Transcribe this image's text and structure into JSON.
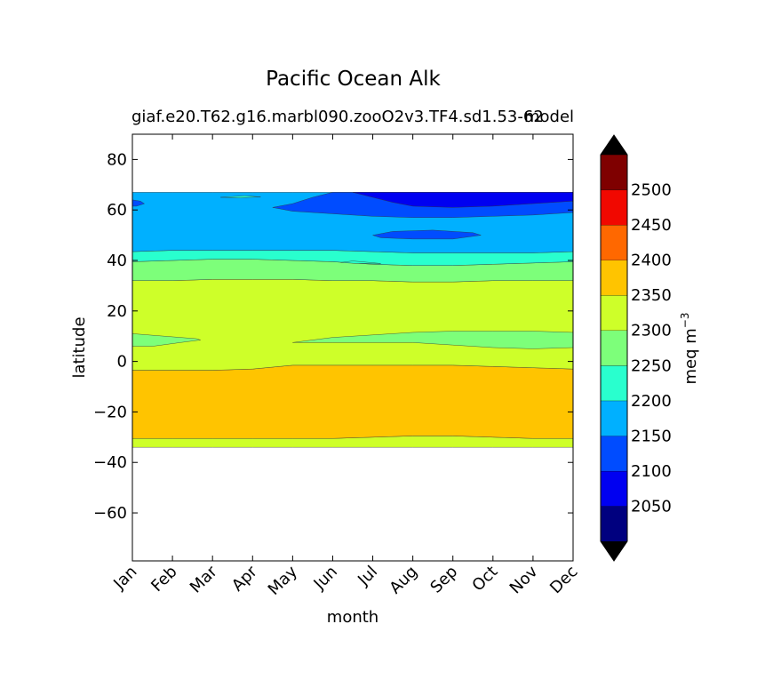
{
  "chart_data": {
    "type": "filled-contour",
    "title": "Pacific Ocean Alk",
    "subtitle_left": "giaf.e20.T62.g16.marbl090.zooO2v3.TF4.sd1.53-62",
    "subtitle_right": "model",
    "xlabel": "month",
    "ylabel": "latitude",
    "x_categories": [
      "Jan",
      "Feb",
      "Mar",
      "Apr",
      "May",
      "Jun",
      "Jul",
      "Aug",
      "Sep",
      "Oct",
      "Nov",
      "Dec"
    ],
    "y_ticks": [
      80,
      60,
      40,
      20,
      0,
      -20,
      -40,
      -60
    ],
    "ylim": [
      -79,
      90
    ],
    "data_lat_range": [
      -34,
      67
    ],
    "colorbar": {
      "label": "meq m",
      "label_exponent": "−3",
      "levels": [
        2000,
        2050,
        2100,
        2150,
        2200,
        2250,
        2300,
        2350,
        2400,
        2450,
        2500,
        2550
      ],
      "tick_labels": [
        "2050",
        "2100",
        "2150",
        "2200",
        "2250",
        "2300",
        "2350",
        "2400",
        "2450",
        "2500"
      ],
      "colors": [
        "#00007f",
        "#0000f1",
        "#004cff",
        "#00b0ff",
        "#29ffce",
        "#7dff7a",
        "#ceff29",
        "#ffc400",
        "#ff6800",
        "#f10800",
        "#7f0000"
      ],
      "extend": "both",
      "under_color": "#000000",
      "over_color": "#000000"
    },
    "latitude_bands_south_to_north": [
      {
        "name": "2300-2350",
        "color": "#ceff29",
        "lower": [
          -34,
          -34,
          -34,
          -34,
          -34,
          -34,
          -34,
          -34,
          -34,
          -34,
          -34,
          -34
        ],
        "upper": [
          -30.5,
          -30.5,
          -30.5,
          -30.5,
          -30.5,
          -30.5,
          -30,
          -29.5,
          -29.5,
          -30,
          -30.5,
          -30.5
        ]
      },
      {
        "name": "2350-2400",
        "color": "#ffc400",
        "lower": [
          -30.5,
          -30.5,
          -30.5,
          -30.5,
          -30.5,
          -30.5,
          -30,
          -29.5,
          -29.5,
          -30,
          -30.5,
          -30.5
        ],
        "upper": [
          -3.5,
          -3.5,
          -3.5,
          -3.0,
          -1.5,
          -1.5,
          -1.5,
          -1.5,
          -1.5,
          -2.0,
          -2.5,
          -3.0
        ]
      },
      {
        "name": "2300-2350",
        "color": "#ceff29",
        "lower": [
          -3.5,
          -3.5,
          -3.5,
          -3.0,
          -1.5,
          -1.5,
          -1.5,
          -1.5,
          -1.5,
          -2.0,
          -2.5,
          -3.0
        ],
        "upper": [
          32,
          32,
          32.5,
          32.5,
          32.5,
          32,
          32,
          31.5,
          31.5,
          32,
          32,
          32
        ]
      },
      {
        "name": "2250-2300",
        "color": "#7dff7a",
        "lower": [
          32,
          32,
          32.5,
          32.5,
          32.5,
          32,
          32,
          31.5,
          31.5,
          32,
          32,
          32
        ],
        "upper": [
          39.5,
          40,
          40.5,
          40.5,
          40,
          39.5,
          38.5,
          38,
          38,
          38.5,
          39,
          39.5
        ]
      },
      {
        "name": "2200-2250",
        "color": "#29ffce",
        "lower": [
          39.5,
          40,
          40.5,
          40.5,
          40,
          39.5,
          38.5,
          38,
          38,
          38.5,
          39,
          39.5
        ],
        "upper": [
          43.5,
          44,
          44,
          44,
          44,
          44,
          43.5,
          43,
          43,
          43,
          43,
          43.5
        ]
      },
      {
        "name": "2150-2200",
        "color": "#00b0ff",
        "lower": [
          43.5,
          44,
          44,
          44,
          44,
          44,
          43.5,
          43,
          43,
          43,
          43,
          43.5
        ],
        "upper": [
          67,
          67,
          67,
          67,
          67,
          67,
          67,
          67,
          67,
          67,
          67,
          67
        ]
      }
    ],
    "features": [
      {
        "name": "2250-2300 tongue west",
        "color": "#7dff7a",
        "points": [
          [
            0.0,
            11
          ],
          [
            0.8,
            10
          ],
          [
            1.6,
            9
          ],
          [
            1.7,
            8.5
          ],
          [
            1.2,
            7.5
          ],
          [
            0.5,
            6
          ],
          [
            0.0,
            6
          ]
        ]
      },
      {
        "name": "2250-2300 tongue east",
        "color": "#7dff7a",
        "points": [
          [
            4.0,
            7.5
          ],
          [
            5.0,
            9.5
          ],
          [
            6.0,
            10.5
          ],
          [
            7.0,
            11.5
          ],
          [
            8.0,
            12
          ],
          [
            9.0,
            12
          ],
          [
            10.0,
            12
          ],
          [
            11.0,
            11.5
          ],
          [
            11.0,
            5.5
          ],
          [
            10.0,
            5
          ],
          [
            9.0,
            5.5
          ],
          [
            8.0,
            6.5
          ],
          [
            7.0,
            7.5
          ],
          [
            6.0,
            7.5
          ],
          [
            5.0,
            7.5
          ]
        ]
      },
      {
        "name": "2100-2150 north region",
        "color": "#004cff",
        "points": [
          [
            3.5,
            61
          ],
          [
            4.0,
            62.5
          ],
          [
            4.5,
            65
          ],
          [
            5.0,
            67
          ],
          [
            11.0,
            67
          ],
          [
            11.0,
            59
          ],
          [
            10.0,
            58
          ],
          [
            9.0,
            57.5
          ],
          [
            8.0,
            57
          ],
          [
            7.0,
            57
          ],
          [
            6.0,
            57.5
          ],
          [
            5.0,
            58.5
          ],
          [
            4.0,
            59.5
          ]
        ]
      },
      {
        "name": "2050-2100 north core",
        "color": "#0000f1",
        "points": [
          [
            5.5,
            67
          ],
          [
            6.0,
            65
          ],
          [
            6.5,
            63
          ],
          [
            7.0,
            61.5
          ],
          [
            8.0,
            61
          ],
          [
            9.0,
            61.5
          ],
          [
            10.0,
            62.5
          ],
          [
            11.0,
            63.5
          ],
          [
            11.0,
            67
          ]
        ]
      },
      {
        "name": "2100-2150 small blob",
        "color": "#004cff",
        "points": [
          [
            6.0,
            50
          ],
          [
            6.5,
            51.5
          ],
          [
            7.5,
            52
          ],
          [
            8.5,
            51
          ],
          [
            8.7,
            50
          ],
          [
            8.0,
            48.5
          ],
          [
            7.0,
            48.5
          ],
          [
            6.2,
            49
          ]
        ]
      },
      {
        "name": "2100-2150 west sliver",
        "color": "#004cff",
        "points": [
          [
            0.0,
            64
          ],
          [
            0.2,
            63.5
          ],
          [
            0.3,
            62.5
          ],
          [
            0.1,
            61.5
          ],
          [
            0.0,
            61.5
          ]
        ]
      },
      {
        "name": "2200-2250 wisp",
        "color": "#29ffce",
        "points": [
          [
            2.2,
            65
          ],
          [
            2.8,
            65.6
          ],
          [
            3.2,
            65.2
          ],
          [
            2.7,
            64.8
          ]
        ]
      },
      {
        "name": "2200-2250 notch",
        "color": "#29ffce",
        "points": [
          [
            5.5,
            39.8
          ],
          [
            5.2,
            39.2
          ],
          [
            5.6,
            38.8
          ],
          [
            6.2,
            38.8
          ]
        ]
      }
    ]
  }
}
